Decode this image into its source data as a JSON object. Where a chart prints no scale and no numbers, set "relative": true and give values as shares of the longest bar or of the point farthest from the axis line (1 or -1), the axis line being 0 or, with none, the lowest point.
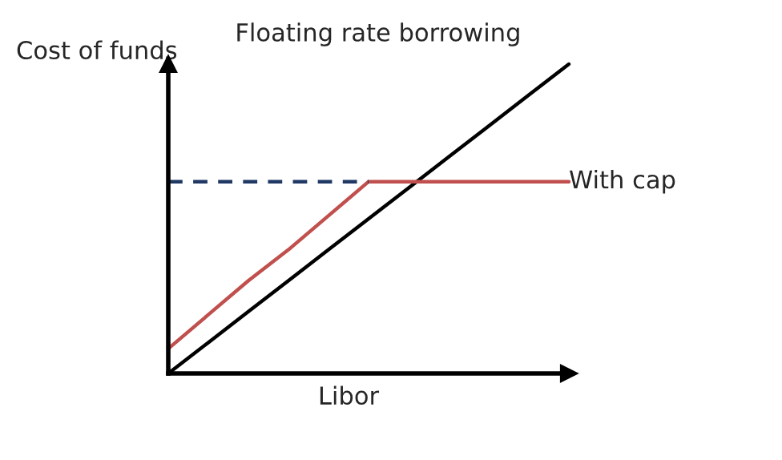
{
  "chart_data": {
    "type": "line",
    "relative": true,
    "xlabel": "Libor",
    "ylabel": "Cost of funds",
    "categories": [
      null,
      null,
      null,
      null,
      null,
      null,
      null,
      null,
      null,
      null,
      null
    ],
    "series": [
      {
        "name": "Floating rate borrowing",
        "color": "#000000",
        "values": [
          0,
          0.1,
          0.2,
          0.3,
          0.4,
          0.5,
          0.6,
          0.7,
          0.8,
          0.9,
          1
        ]
      },
      {
        "name": "With cap",
        "color": "#c0504d",
        "values": [
          0.08,
          0.19,
          0.3,
          0.4,
          0.51,
          0.62,
          0.62,
          0.62,
          0.62,
          0.62,
          0.62
        ]
      },
      {
        "color": "#1f3864",
        "line_style": "dashed",
        "values": [
          0.62,
          0.62,
          0.62,
          0.62,
          0.62,
          0.62,
          null,
          null,
          null,
          null,
          null
        ]
      }
    ],
    "grid": false,
    "legend": false,
    "marker": "none"
  }
}
